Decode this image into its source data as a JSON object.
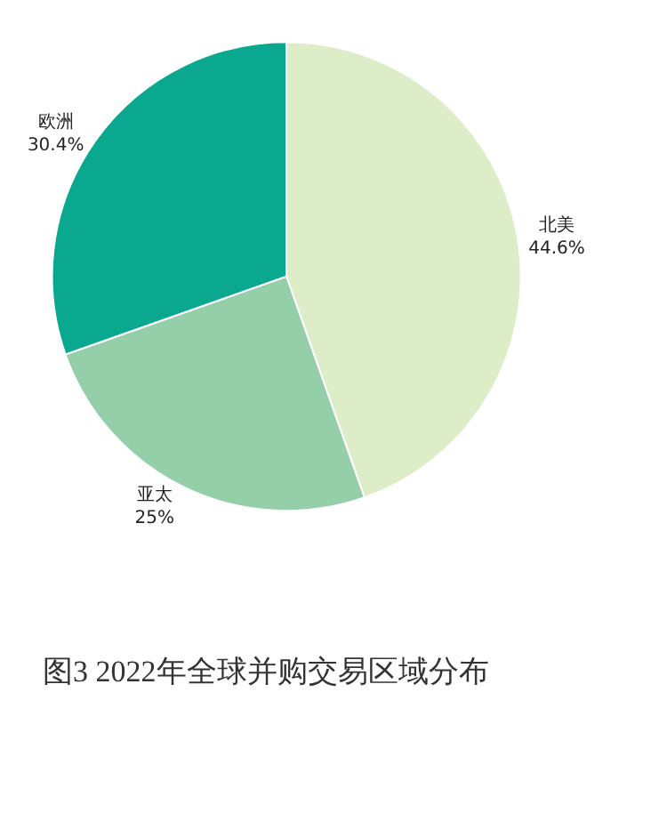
{
  "chart_data": {
    "type": "pie",
    "title": "图3 2022年全球并购交易区域分布",
    "categories": [
      "北美",
      "亚太",
      "欧洲"
    ],
    "values": [
      44.6,
      25,
      30.4
    ],
    "value_labels": [
      "44.6%",
      "25%",
      "30.4%"
    ],
    "colors": [
      "#dcedc8",
      "#95cfa9",
      "#0aa88f"
    ],
    "legend": false
  }
}
